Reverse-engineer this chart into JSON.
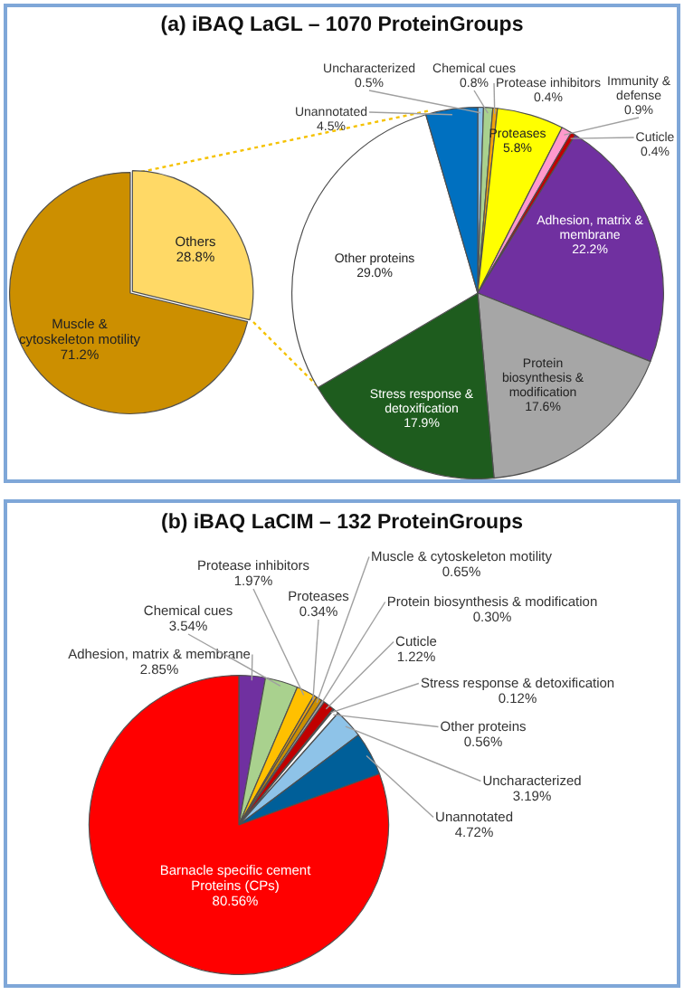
{
  "chart_data": [
    {
      "type": "pie",
      "title": "(a) iBAQ LaGL – 1070 ProteinGroups",
      "categories": [
        "Others",
        "Muscle & cytoskeleton motility"
      ],
      "values": [
        28.8,
        71.2
      ],
      "colors": [
        "#ffd966",
        "#cc8f00"
      ],
      "value_labels": [
        "28.8%",
        "71.2%"
      ]
    },
    {
      "type": "pie",
      "categories": [
        "Uncharacterized",
        "Chemical cues",
        "Protease inhibitors",
        "Proteases",
        "Immunity & defense",
        "Cuticle",
        "Adhesion, matrix & membrane",
        "Protein biosynthesis & modification",
        "Stress response & detoxification",
        "Other proteins",
        "Unannotated"
      ],
      "values": [
        0.5,
        0.8,
        0.4,
        5.8,
        0.9,
        0.4,
        22.2,
        17.6,
        17.9,
        29.0,
        4.5
      ],
      "colors": [
        "#8ec3e8",
        "#a9d18e",
        "#f0a30a",
        "#ffff00",
        "#ff99cc",
        "#c00000",
        "#7030a0",
        "#a6a6a6",
        "#1e5c1e",
        "#ffffff",
        "#0070c0"
      ],
      "value_labels": [
        "0.5%",
        "0.8%",
        "0.4%",
        "5.8%",
        "0.9%",
        "0.4%",
        "22.2%",
        "17.6%",
        "17.9%",
        "29.0%",
        "4.5%"
      ]
    },
    {
      "type": "pie",
      "title": "(b) iBAQ LaCIM – 132 ProteinGroups",
      "categories": [
        "Adhesion, matrix & membrane",
        "Chemical cues",
        "Protease inhibitors",
        "Proteases",
        "Muscle & cytoskeleton motility",
        "Protein biosynthesis & modification",
        "Cuticle",
        "Stress response & detoxification",
        "Other proteins",
        "Uncharacterized",
        "Unannotated",
        "Barnacle specific cement Proteins (CPs)"
      ],
      "values": [
        2.85,
        3.54,
        1.97,
        0.34,
        0.65,
        0.3,
        1.22,
        0.12,
        0.56,
        3.19,
        4.72,
        80.56
      ],
      "colors": [
        "#7030a0",
        "#a9d18e",
        "#ffc000",
        "#f0a30a",
        "#cc8f00",
        "#a6a6a6",
        "#c00000",
        "#1e5c1e",
        "#ffffff",
        "#8ec3e8",
        "#005f99",
        "#ff0000"
      ],
      "value_labels": [
        "2.85%",
        "3.54%",
        "1.97%",
        "0.34%",
        "0.65%",
        "0.30%",
        "1.22%",
        "0.12%",
        "0.56%",
        "3.19%",
        "4.72%",
        "80.56%"
      ]
    }
  ]
}
